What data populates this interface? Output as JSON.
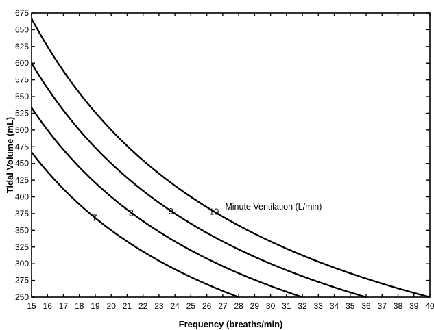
{
  "chart_data": {
    "type": "line",
    "xlabel": "Frequency (breaths/min)",
    "ylabel": "Tidal Volume (mL)",
    "xlim": [
      15,
      40
    ],
    "ylim": [
      250,
      675
    ],
    "xticks": [
      15,
      16,
      17,
      18,
      19,
      20,
      21,
      22,
      23,
      24,
      25,
      26,
      27,
      28,
      29,
      30,
      31,
      32,
      33,
      34,
      35,
      36,
      37,
      38,
      39,
      40
    ],
    "yticks": [
      250,
      275,
      300,
      325,
      350,
      375,
      400,
      425,
      450,
      475,
      500,
      525,
      550,
      575,
      600,
      625,
      650,
      675
    ],
    "annotation": "Minute Ventilation (L/min)",
    "grid": false,
    "series": [
      {
        "name": "7",
        "minute_ventilation_L_per_min": 7,
        "x_range": [
          15,
          28
        ],
        "color": "#000000"
      },
      {
        "name": "8",
        "minute_ventilation_L_per_min": 8,
        "x_range": [
          15,
          32
        ],
        "color": "#000000"
      },
      {
        "name": "9",
        "minute_ventilation_L_per_min": 9,
        "x_range": [
          15,
          36
        ],
        "color": "#000000"
      },
      {
        "name": "10",
        "minute_ventilation_L_per_min": 10,
        "x_range": [
          15,
          40
        ],
        "color": "#000000"
      }
    ]
  }
}
